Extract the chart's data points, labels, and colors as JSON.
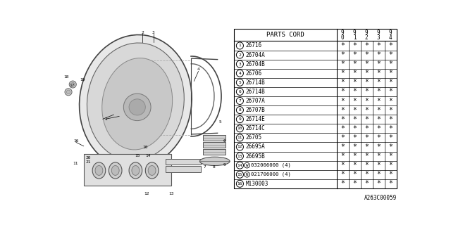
{
  "bg_color": "#ffffff",
  "footnote": "A263C00059",
  "header_years": [
    "9\n0",
    "9\n1",
    "9\n2",
    "9\n3",
    "9\n4"
  ],
  "rows": [
    [
      "1",
      "26716",
      "*",
      "*",
      "*",
      "*",
      "*"
    ],
    [
      "2",
      "26704A",
      "*",
      "*",
      "*",
      "*",
      "*"
    ],
    [
      "3",
      "26704B",
      "*",
      "*",
      "*",
      "*",
      "*"
    ],
    [
      "4",
      "26706",
      "*",
      "*",
      "*",
      "*",
      "*"
    ],
    [
      "5",
      "26714B",
      "*",
      "*",
      "*",
      "*",
      "*"
    ],
    [
      "6",
      "26714B",
      "*",
      "*",
      "*",
      "*",
      "*"
    ],
    [
      "7",
      "26707A",
      "*",
      "*",
      "*",
      "*",
      "*"
    ],
    [
      "8",
      "26707B",
      "*",
      "*",
      "*",
      "*",
      "*"
    ],
    [
      "9",
      "26714E",
      "*",
      "*",
      "*",
      "*",
      "*"
    ],
    [
      "10",
      "26714C",
      "*",
      "*",
      "*",
      "*",
      "*"
    ],
    [
      "11",
      "26705",
      "*",
      "*",
      "*",
      "*",
      "*"
    ],
    [
      "12",
      "26695A",
      "*",
      "*",
      "*",
      "*",
      "*"
    ],
    [
      "13",
      "26695B",
      "*",
      "*",
      "*",
      "*",
      "*"
    ],
    [
      "14",
      "W",
      "032006000 (4)",
      "*",
      "*",
      "*",
      "*",
      "*"
    ],
    [
      "15",
      "N",
      "021706000 (4)",
      "*",
      "*",
      "*",
      "*",
      "*"
    ],
    [
      "16",
      "M130003",
      "*",
      "*",
      "*",
      "*",
      "*"
    ]
  ]
}
